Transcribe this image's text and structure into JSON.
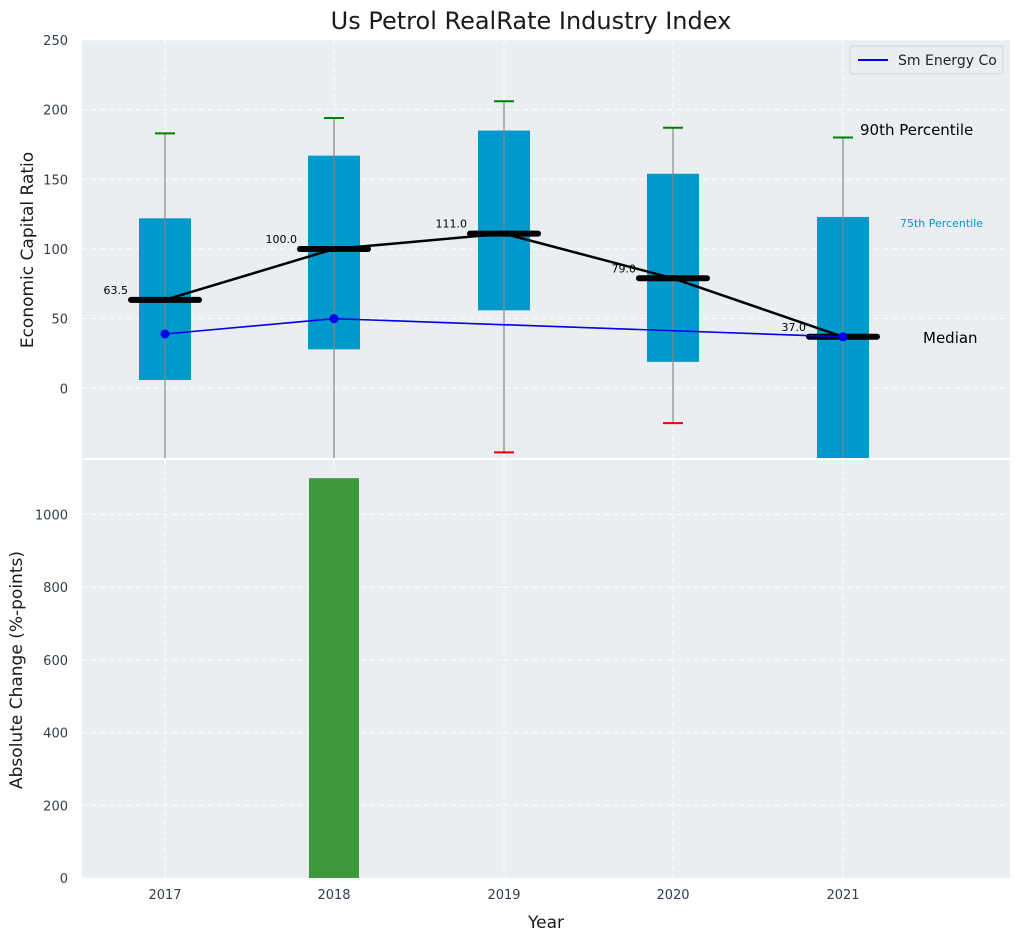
{
  "chart_data": [
    {
      "type": "box-percentile",
      "title": "Us Petrol RealRate Industry Index",
      "xlabel": "",
      "ylabel": "Economic Capital Ratio",
      "ylim": [
        -50,
        250
      ],
      "yticks": [
        0,
        50,
        100,
        150,
        200,
        250
      ],
      "categories": [
        "2017",
        "2018",
        "2019",
        "2020",
        "2021"
      ],
      "p25": [
        6,
        28,
        56,
        19,
        -50
      ],
      "p75": [
        122,
        167,
        185,
        154,
        123
      ],
      "median": [
        63.5,
        100.0,
        111.0,
        79.0,
        37.0
      ],
      "median_labels": [
        "63.5",
        "100.0",
        "111.0",
        "79.0",
        "37.0"
      ],
      "p90": [
        183,
        194,
        206,
        187,
        180
      ],
      "p10": [
        null,
        null,
        -46,
        -25,
        null
      ],
      "company": {
        "name": "Sm Energy Co",
        "values": [
          39,
          50,
          null,
          null,
          37
        ]
      },
      "annotations": {
        "p90": "90th Percentile",
        "p75": "75th Percentile",
        "median": "Median"
      },
      "legend": {
        "entries": [
          "Sm Energy Co"
        ],
        "position": "upper-right"
      },
      "colors": {
        "box": "#0099cc",
        "median_line": "#000000",
        "company": "#0000ee",
        "p90": "#008000",
        "p10": "#ee0000",
        "whisker": "#888888",
        "panel": "#eaeef0"
      }
    },
    {
      "type": "bar",
      "xlabel": "Year",
      "ylabel": "Absolute Change (%-points)",
      "ylim": [
        0,
        1150
      ],
      "yticks": [
        0,
        200,
        400,
        600,
        800,
        1000
      ],
      "categories": [
        "2017",
        "2018",
        "2019",
        "2020",
        "2021"
      ],
      "values": [
        0,
        1100,
        0,
        0,
        0
      ],
      "colors": {
        "bar": "#3c9a3c",
        "panel": "#eaeef0"
      }
    }
  ]
}
